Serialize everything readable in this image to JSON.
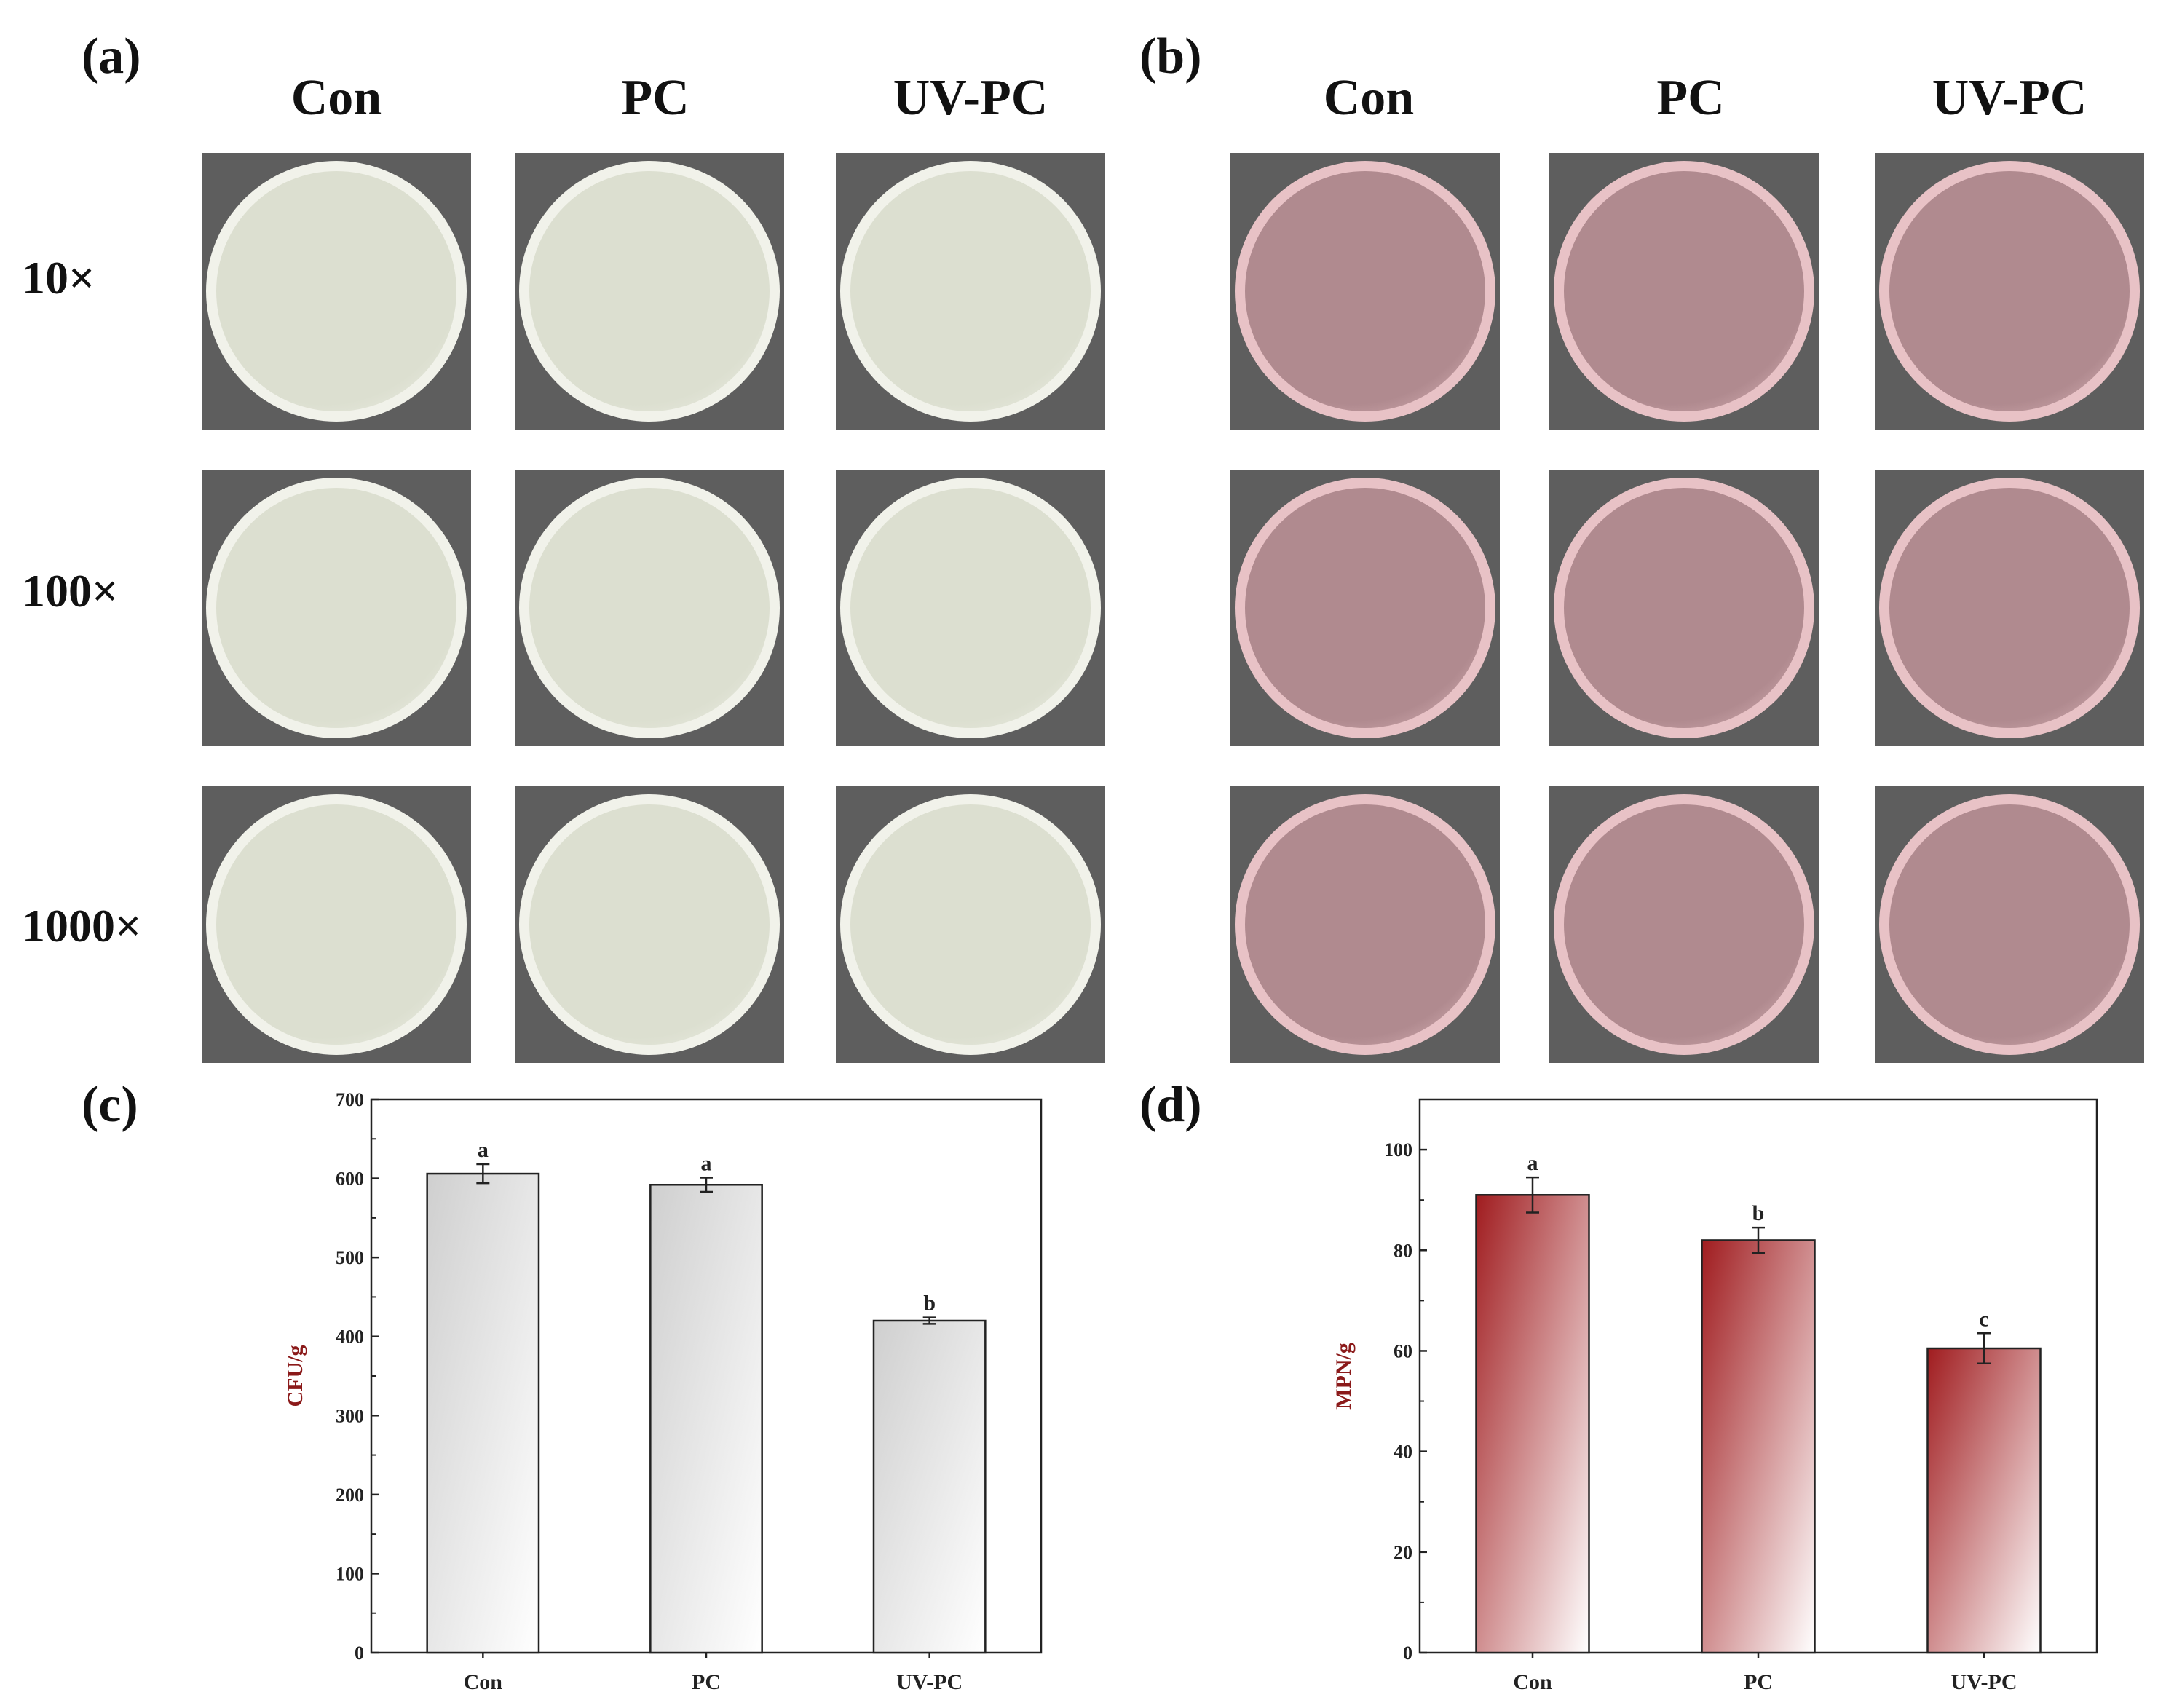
{
  "panels": {
    "a": {
      "letter": "(a)",
      "columns": [
        "Con",
        "PC",
        "UV-PC"
      ],
      "rows": [
        "10×",
        "100×",
        "1000×"
      ],
      "dish_color": "#dcdfd0",
      "rim_color": "#f1f2ea"
    },
    "b": {
      "letter": "(b)",
      "columns": [
        "Con",
        "PC",
        "UV-PC"
      ],
      "dish_color": "#b08a8f",
      "rim_color": "#e8c2c6"
    },
    "c": {
      "letter": "(c)"
    },
    "d": {
      "letter": "(d)"
    }
  },
  "chart_data": [
    {
      "panel": "c",
      "type": "bar",
      "categories": [
        "Con",
        "PC",
        "UV-PC"
      ],
      "values": [
        606,
        592,
        420
      ],
      "errors": [
        12,
        9,
        4
      ],
      "significance": [
        "a",
        "a",
        "b"
      ],
      "ylabel": "CFU/g",
      "ylim": [
        0,
        700
      ],
      "yticks": [
        0,
        100,
        200,
        300,
        400,
        500,
        600,
        700
      ],
      "fill_color": "#cfcfcf"
    },
    {
      "panel": "d",
      "type": "bar",
      "categories": [
        "Con",
        "PC",
        "UV-PC"
      ],
      "values": [
        91,
        82,
        60.5
      ],
      "errors": [
        3.5,
        2.5,
        3
      ],
      "significance": [
        "a",
        "b",
        "c"
      ],
      "ylabel": "MPN/g",
      "ylim": [
        0,
        110
      ],
      "yticks": [
        0,
        20,
        40,
        60,
        80,
        100
      ],
      "fill_color": "#a01c1f"
    }
  ]
}
